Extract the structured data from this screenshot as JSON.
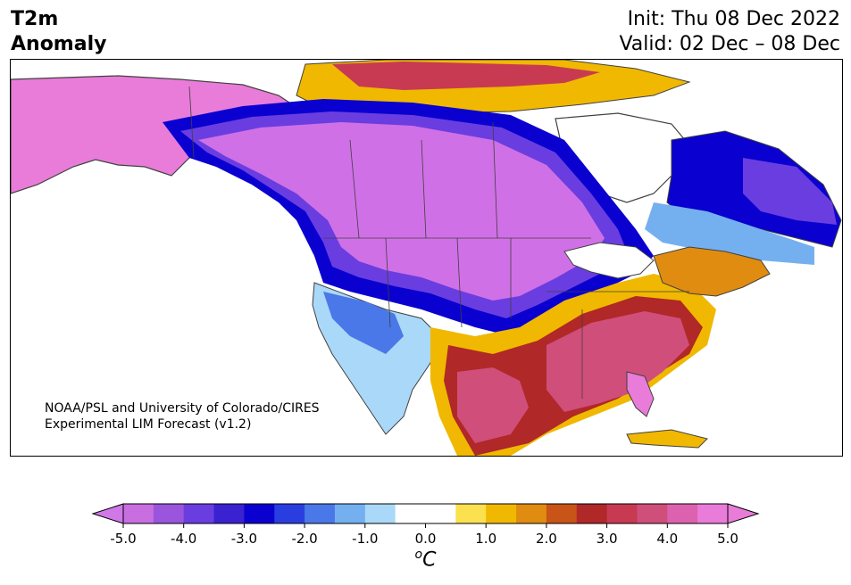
{
  "header": {
    "title_line1": "T2m",
    "title_line2": "Anomaly",
    "init_text": "Init: Thu 08 Dec 2022",
    "valid_text": "Valid: 02 Dec – 08 Dec"
  },
  "credit": {
    "line1": "NOAA/PSL and University of Colorado/CIRES",
    "line2": "Experimental LIM Forecast (v1.2)"
  },
  "colorbar": {
    "unit_sup": "o",
    "unit_base": "C",
    "tick_labels": [
      "-5.0",
      "-4.0",
      "-3.0",
      "-2.0",
      "-1.0",
      "0.0",
      "1.0",
      "2.0",
      "3.0",
      "4.0",
      "5.0"
    ],
    "colors": [
      "#c86ee0",
      "#9a55dc",
      "#6a3de0",
      "#3a22d0",
      "#0a00d0",
      "#2a3ee0",
      "#4a78e8",
      "#74b0f0",
      "#aad8f8",
      "#ffffff",
      "#ffffff",
      "#fbe050",
      "#f0b800",
      "#e08c10",
      "#c85418",
      "#b02828",
      "#c83a52",
      "#d04e7a",
      "#dc62b0",
      "#e87cd8"
    ],
    "under_color": "#d078e8",
    "over_color": "#e87cd8"
  },
  "map": {
    "anomaly_colors": {
      "cold_extreme": "#d070e6",
      "cold_mid": "#6a3de0",
      "cold_blue": "#0a00d0",
      "cool": "#4a78e8",
      "cool_light": "#74b0f0",
      "near_zero": "#aad8f8",
      "warm_light": "#fbe050",
      "warm": "#f0b800",
      "warm_orange": "#e08c10",
      "hot": "#b02828",
      "hot_pink": "#d04e7a",
      "hot_extreme": "#e87cd8"
    }
  }
}
